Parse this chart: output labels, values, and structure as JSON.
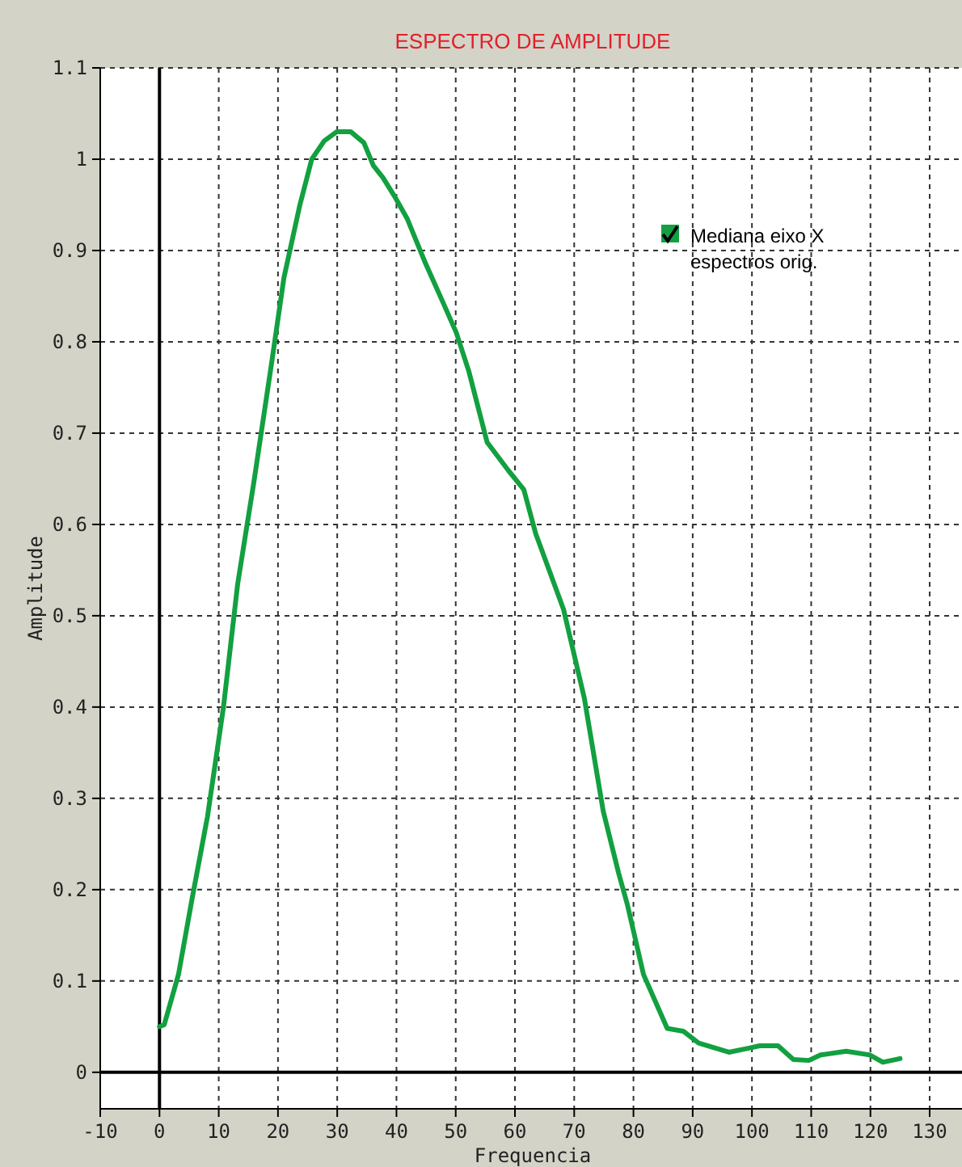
{
  "chart_data": {
    "type": "line",
    "title": "ESPECTRO DE AMPLITUDE",
    "xlabel": "Frequencia",
    "ylabel": "Amplitude",
    "xlim": [
      -10,
      136
    ],
    "ylim": [
      -0.04,
      1.1
    ],
    "xticks": [
      -10,
      0,
      10,
      20,
      30,
      40,
      50,
      60,
      70,
      80,
      90,
      100,
      110,
      120,
      130
    ],
    "yticks": [
      0,
      0.1,
      0.2,
      0.3,
      0.4,
      0.5,
      0.6,
      0.7,
      0.8,
      0.9,
      1,
      1.1
    ],
    "grid": true,
    "legend": "top right",
    "marker": "none",
    "line_style": "solid",
    "series": [
      {
        "name": "Mediana eixo X espectros orig.",
        "color": "#12a040",
        "x": [
          0,
          0.8,
          3.2,
          5.5,
          8.1,
          10.8,
          13.2,
          15.9,
          19,
          21,
          23.7,
          25.7,
          27.8,
          29.9,
          32.3,
          34.5,
          36.1,
          37.7,
          39.8,
          41.8,
          44.9,
          48,
          50.1,
          52.2,
          55.3,
          58.9,
          61.5,
          63.5,
          68.2,
          71.7,
          74.9,
          77.5,
          79,
          81.7,
          85.7,
          88.4,
          91,
          96.1,
          99.2,
          101.3,
          104.4,
          107,
          109.6,
          111.6,
          115.9,
          119.9,
          122.1,
          125
        ],
        "values": [
          0.05,
          0.052,
          0.107,
          0.19,
          0.28,
          0.4,
          0.535,
          0.645,
          0.78,
          0.87,
          0.95,
          1.0,
          1.02,
          1.03,
          1.03,
          1.018,
          0.993,
          0.98,
          0.958,
          0.935,
          0.886,
          0.841,
          0.81,
          0.768,
          0.69,
          0.659,
          0.638,
          0.59,
          0.507,
          0.41,
          0.286,
          0.218,
          0.183,
          0.107,
          0.048,
          0.045,
          0.032,
          0.022,
          0.026,
          0.029,
          0.029,
          0.014,
          0.013,
          0.019,
          0.023,
          0.019,
          0.011,
          0.015
        ]
      }
    ]
  }
}
